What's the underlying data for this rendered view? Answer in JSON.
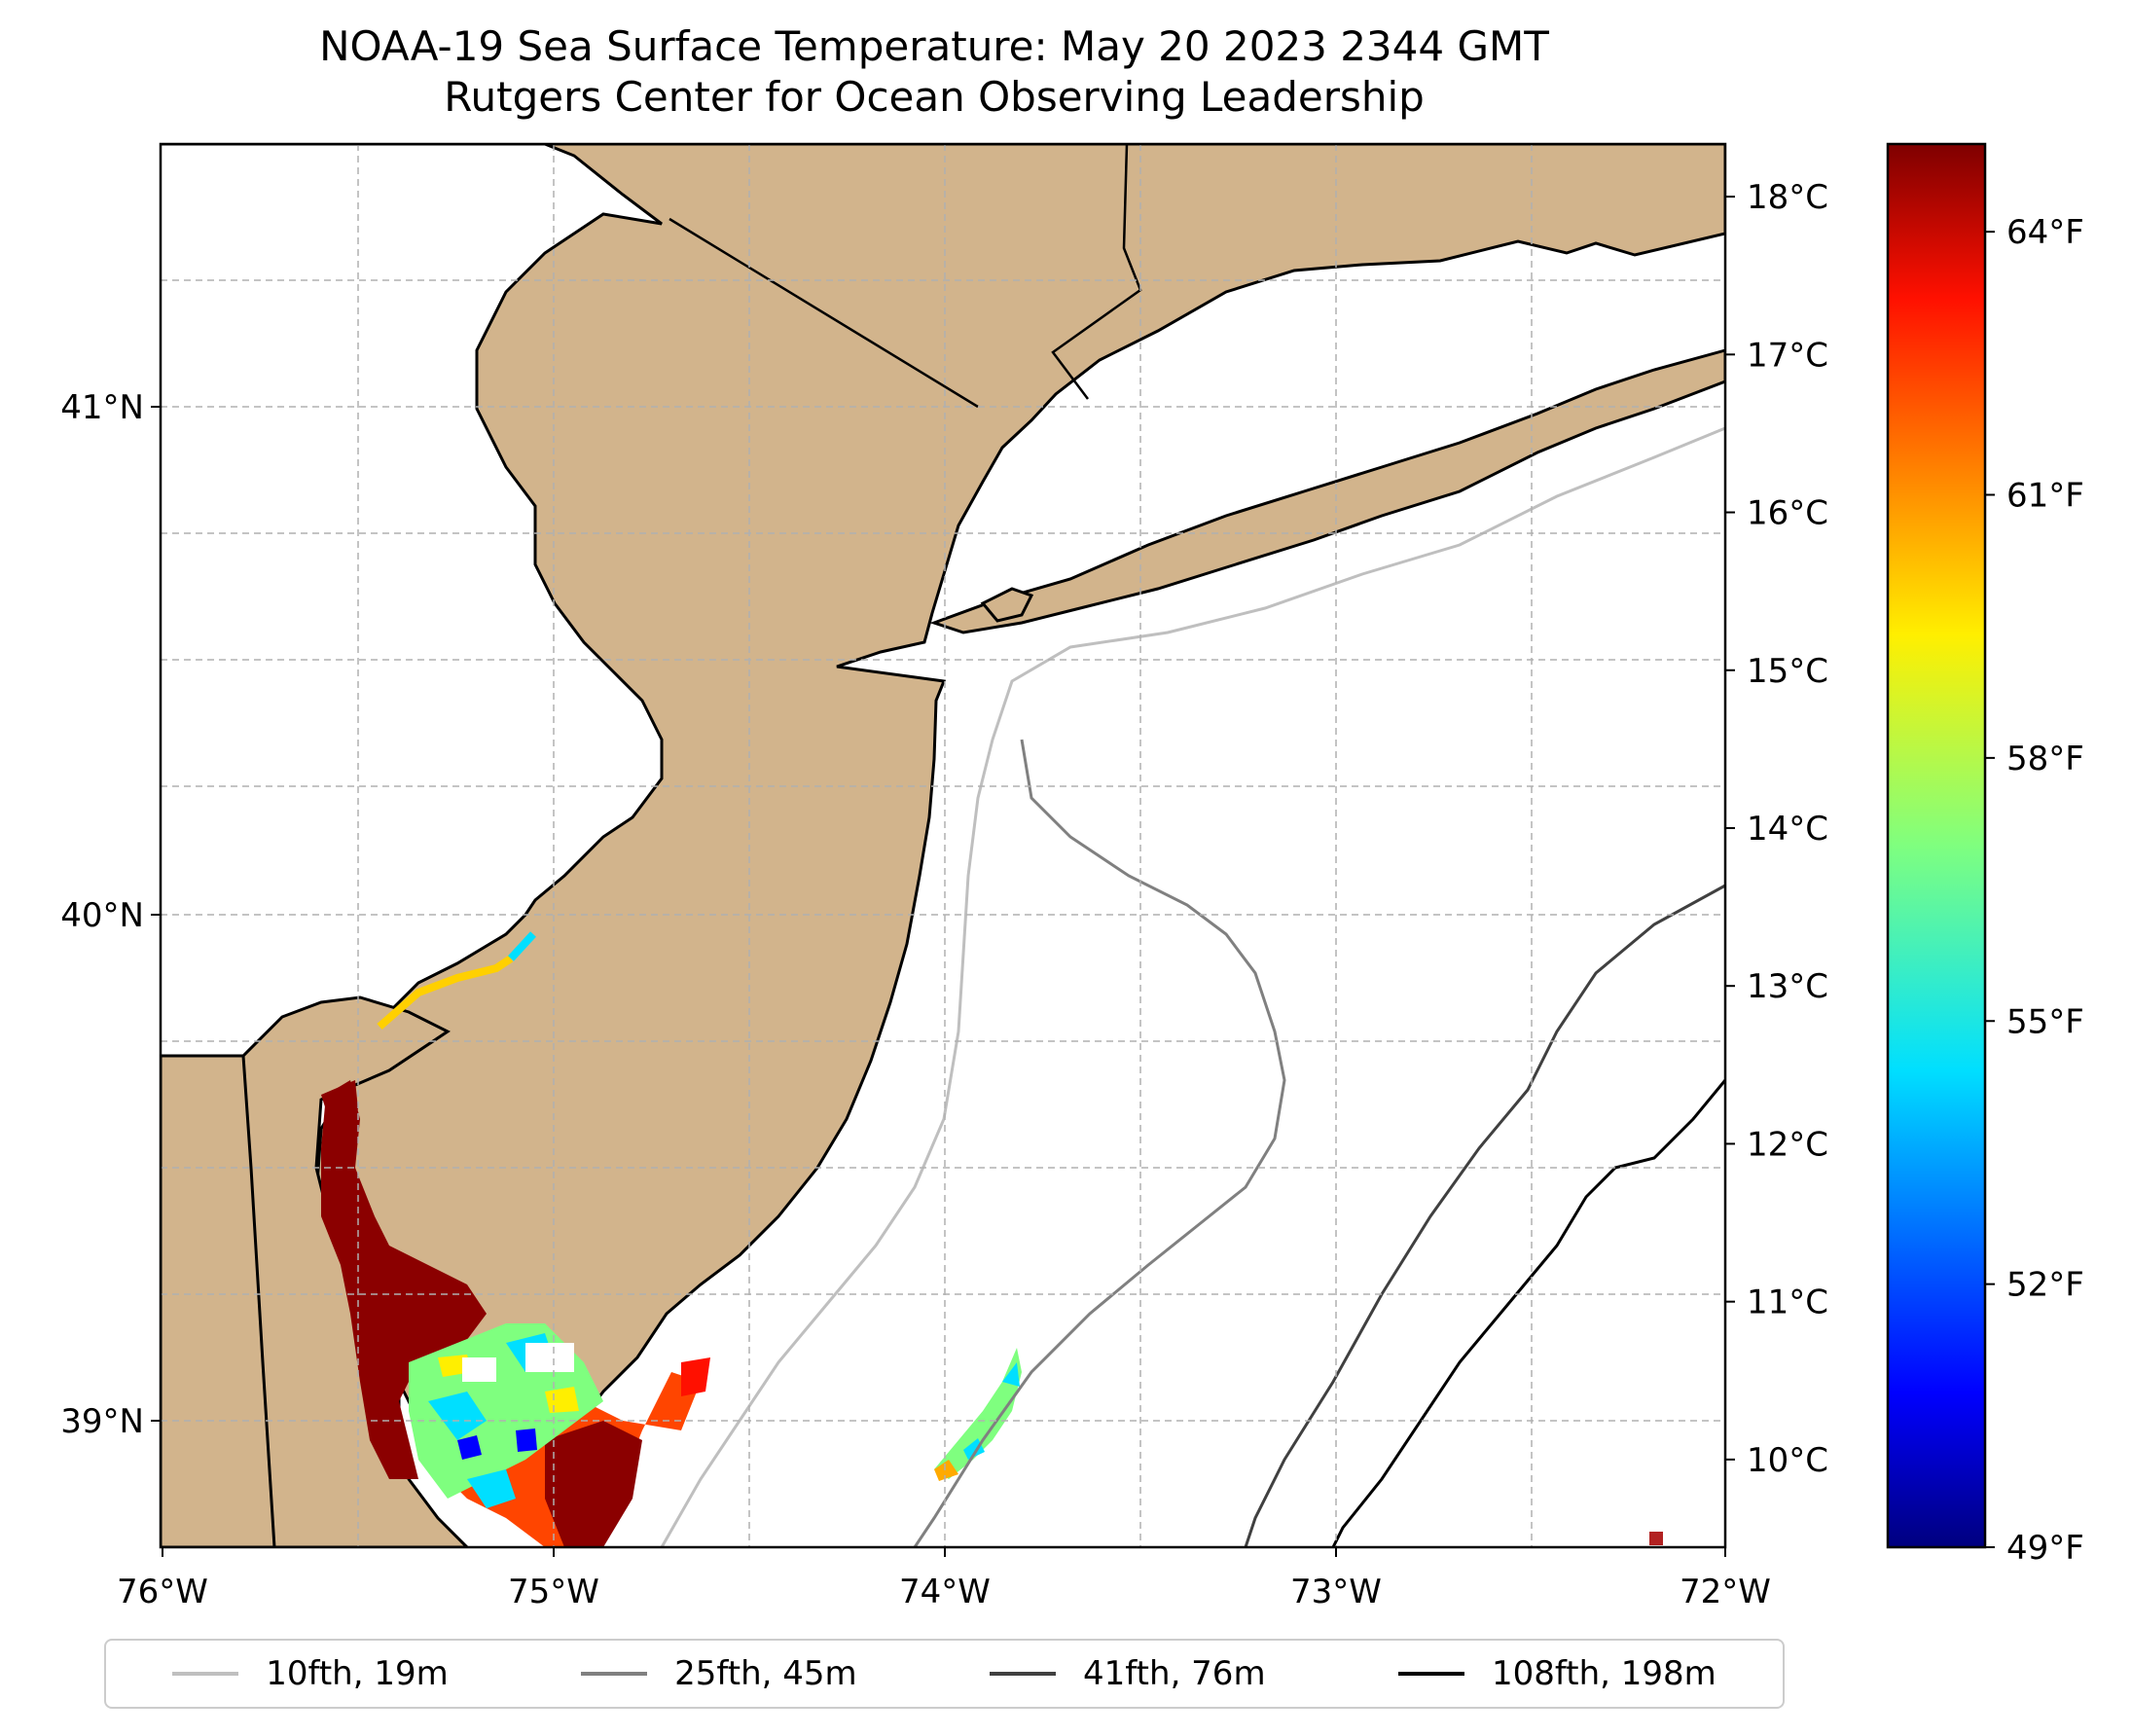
{
  "title": {
    "line1": "NOAA-19 Sea Surface Temperature: May 20 2023 2344 GMT",
    "line2": "Rutgers Center for Ocean Observing Leadership"
  },
  "map_axes": {
    "x_ticks": [
      "76°W",
      "75°W",
      "74°W",
      "73°W",
      "72°W"
    ],
    "y_ticks": [
      "41°N",
      "40°N",
      "39°N"
    ],
    "lon_range": [
      -76,
      -72
    ],
    "lat_range": [
      38.73,
      41.53
    ],
    "gridlines": "dashed",
    "land_color": "#d2b48c",
    "ocean_color": "#ffffff"
  },
  "colorbar": {
    "celsius_ticks": [
      "18°C",
      "17°C",
      "16°C",
      "15°C",
      "14°C",
      "13°C",
      "12°C",
      "11°C",
      "10°C"
    ],
    "fahrenheit_ticks": [
      "64°F",
      "61°F",
      "58°F",
      "55°F",
      "52°F",
      "49°F"
    ],
    "celsius_values": [
      18,
      17,
      16,
      15,
      14,
      13,
      12,
      11,
      10
    ],
    "fahrenheit_values": [
      64,
      61,
      58,
      55,
      52,
      49
    ],
    "range_f": [
      49,
      65
    ],
    "colormap": "jet"
  },
  "legend": {
    "placement": "bottom",
    "items": [
      {
        "label": "10fth, 19m",
        "color": "#bfbfbf"
      },
      {
        "label": "25fth, 45m",
        "color": "#808080"
      },
      {
        "label": "41fth, 76m",
        "color": "#404040"
      },
      {
        "label": "108fth, 198m",
        "color": "#000000"
      }
    ]
  }
}
